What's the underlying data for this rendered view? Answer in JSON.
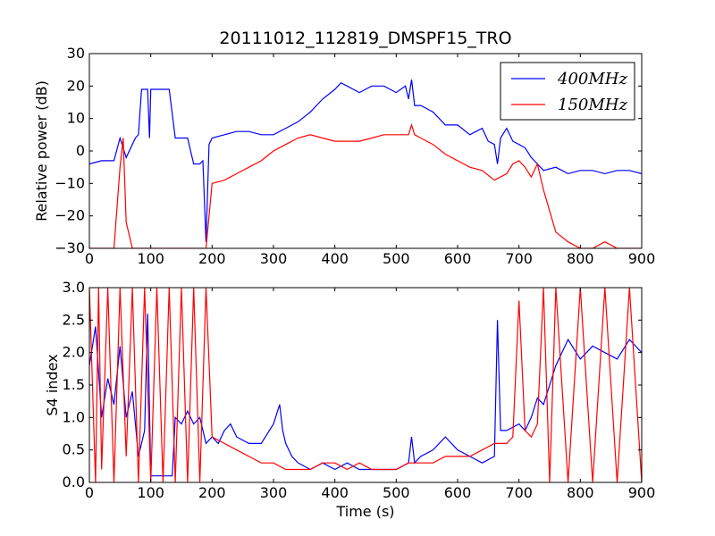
{
  "chart_data": [
    {
      "type": "line",
      "title": "20111012_112819_DMSPF15_TRO",
      "xlabel": "",
      "ylabel": "Relative power (dB)",
      "xlim": [
        0,
        900
      ],
      "ylim": [
        -30,
        30
      ],
      "xticks": [
        "0",
        "100",
        "200",
        "300",
        "400",
        "500",
        "600",
        "700",
        "800",
        "900"
      ],
      "yticks": [
        "−30",
        "−20",
        "−10",
        "0",
        "10",
        "20",
        "30"
      ],
      "legend_position": "top-right",
      "series": [
        {
          "name": "400MHz",
          "color": "#0000ff",
          "x": [
            0,
            20,
            40,
            50,
            60,
            75,
            80,
            85,
            90,
            95,
            98,
            100,
            110,
            120,
            130,
            140,
            150,
            160,
            170,
            180,
            185,
            190,
            195,
            200,
            220,
            240,
            260,
            280,
            300,
            320,
            340,
            360,
            380,
            400,
            410,
            420,
            440,
            460,
            480,
            500,
            515,
            520,
            525,
            530,
            540,
            560,
            580,
            600,
            620,
            640,
            650,
            660,
            665,
            670,
            680,
            690,
            700,
            710,
            720,
            730,
            740,
            760,
            780,
            800,
            820,
            840,
            860,
            880,
            900
          ],
          "y": [
            -4,
            -3,
            -3,
            4,
            -2,
            4,
            5,
            19,
            19,
            19,
            4,
            19,
            19,
            19,
            19,
            4,
            4,
            4,
            -4,
            -4,
            -3,
            -28,
            2,
            4,
            5,
            6,
            6,
            5,
            5,
            7,
            9,
            12,
            16,
            19,
            21,
            20,
            18,
            20,
            20,
            18,
            20,
            16,
            22,
            14,
            14,
            12,
            8,
            8,
            5,
            7,
            3,
            2,
            -4,
            4,
            7,
            3,
            2,
            1,
            -2,
            -4,
            -6,
            -5,
            -7,
            -6,
            -6,
            -7,
            -6,
            -6,
            -7
          ]
        },
        {
          "name": "150MHz",
          "color": "#ff0000",
          "x": [
            0,
            20,
            40,
            50,
            55,
            60,
            70,
            80,
            90,
            100,
            120,
            140,
            150,
            170,
            180,
            190,
            200,
            220,
            240,
            260,
            280,
            300,
            320,
            340,
            360,
            380,
            400,
            420,
            440,
            460,
            480,
            500,
            515,
            520,
            525,
            530,
            540,
            560,
            580,
            600,
            620,
            640,
            660,
            680,
            690,
            700,
            710,
            720,
            730,
            740,
            760,
            780,
            800,
            820,
            840,
            860,
            880,
            900
          ],
          "y": [
            -30,
            -30,
            -30,
            -5,
            4,
            -22,
            -30,
            -30,
            -30,
            -30,
            -30,
            -30,
            -30,
            -30,
            -30,
            -30,
            -10,
            -9,
            -7,
            -5,
            -3,
            0,
            2,
            4,
            5,
            4,
            3,
            3,
            3,
            4,
            5,
            5,
            5,
            5,
            8,
            5,
            4,
            2,
            -1,
            -3,
            -5,
            -6,
            -9,
            -7,
            -4,
            -3,
            -5,
            -8,
            -4,
            -12,
            -25,
            -28,
            -30,
            -30,
            -28,
            -30,
            -30,
            -30
          ]
        }
      ]
    },
    {
      "type": "line",
      "title": "",
      "xlabel": "Time (s)",
      "ylabel": "S4 index",
      "xlim": [
        0,
        900
      ],
      "ylim": [
        0,
        3
      ],
      "xticks": [
        "0",
        "100",
        "200",
        "300",
        "400",
        "500",
        "600",
        "700",
        "800",
        "900"
      ],
      "yticks": [
        "0.0",
        "0.5",
        "1.0",
        "1.5",
        "2.0",
        "2.5",
        "3.0"
      ],
      "series": [
        {
          "name": "400MHz",
          "color": "#0000ff",
          "x": [
            0,
            10,
            20,
            30,
            40,
            50,
            60,
            70,
            80,
            90,
            95,
            100,
            110,
            120,
            130,
            135,
            140,
            150,
            160,
            170,
            180,
            190,
            200,
            210,
            220,
            230,
            240,
            260,
            280,
            300,
            310,
            315,
            320,
            330,
            340,
            360,
            380,
            400,
            420,
            440,
            460,
            480,
            500,
            520,
            525,
            530,
            540,
            560,
            580,
            600,
            620,
            640,
            660,
            665,
            670,
            680,
            700,
            710,
            720,
            730,
            740,
            760,
            780,
            800,
            820,
            840,
            860,
            880,
            900
          ],
          "y": [
            1.8,
            2.4,
            1.0,
            1.6,
            1.2,
            2.1,
            1.0,
            1.4,
            0.4,
            0.8,
            2.6,
            0.1,
            0.1,
            0.1,
            0.1,
            0.1,
            1.0,
            0.9,
            1.1,
            0.9,
            1.0,
            0.6,
            0.7,
            0.6,
            0.8,
            0.9,
            0.7,
            0.6,
            0.6,
            0.9,
            1.2,
            0.8,
            0.6,
            0.4,
            0.3,
            0.2,
            0.3,
            0.2,
            0.3,
            0.2,
            0.2,
            0.2,
            0.2,
            0.3,
            0.7,
            0.3,
            0.4,
            0.5,
            0.7,
            0.5,
            0.4,
            0.3,
            0.4,
            2.5,
            0.8,
            0.8,
            0.9,
            0.8,
            1.0,
            1.3,
            1.2,
            1.8,
            2.2,
            1.9,
            2.1,
            2.0,
            1.9,
            2.2,
            2.0
          ]
        },
        {
          "name": "150MHz",
          "color": "#ff0000",
          "x": [
            0,
            10,
            15,
            20,
            30,
            40,
            50,
            60,
            70,
            80,
            90,
            100,
            110,
            120,
            130,
            140,
            150,
            160,
            170,
            180,
            190,
            200,
            220,
            240,
            260,
            280,
            300,
            320,
            340,
            360,
            380,
            400,
            420,
            440,
            460,
            480,
            500,
            520,
            530,
            540,
            560,
            580,
            600,
            620,
            640,
            660,
            680,
            690,
            700,
            710,
            720,
            730,
            740,
            750,
            760,
            780,
            800,
            820,
            840,
            860,
            880,
            900
          ],
          "y": [
            3.0,
            0.0,
            3.0,
            0.2,
            3.0,
            0.0,
            3.0,
            0.4,
            3.0,
            0.0,
            3.0,
            0.0,
            3.0,
            0.0,
            3.0,
            0.0,
            3.0,
            0.0,
            3.0,
            0.0,
            3.0,
            0.7,
            0.6,
            0.5,
            0.4,
            0.3,
            0.3,
            0.2,
            0.2,
            0.2,
            0.3,
            0.3,
            0.2,
            0.3,
            0.2,
            0.2,
            0.2,
            0.3,
            0.3,
            0.3,
            0.3,
            0.4,
            0.4,
            0.4,
            0.5,
            0.6,
            0.6,
            0.7,
            2.8,
            0.8,
            0.7,
            0.9,
            3.0,
            0.0,
            3.0,
            0.0,
            3.0,
            0.0,
            3.0,
            0.0,
            3.0,
            0.0
          ]
        }
      ]
    }
  ]
}
